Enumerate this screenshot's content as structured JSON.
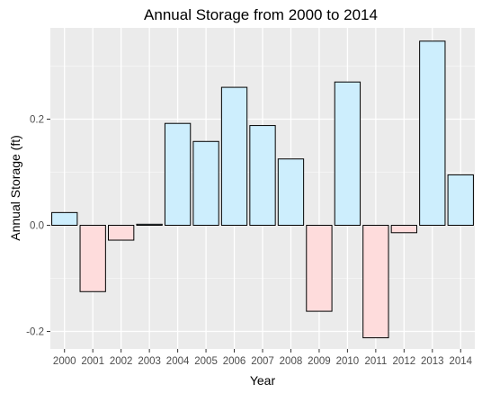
{
  "chart_data": {
    "type": "bar",
    "title": "Annual Storage from 2000 to 2014",
    "xlabel": "Year",
    "ylabel": "Annual Storage (ft)",
    "categories": [
      "2000",
      "2001",
      "2002",
      "2003",
      "2004",
      "2005",
      "2006",
      "2007",
      "2008",
      "2009",
      "2010",
      "2011",
      "2012",
      "2013",
      "2014"
    ],
    "values": [
      0.024,
      -0.125,
      -0.028,
      0.002,
      0.192,
      0.158,
      0.26,
      0.188,
      0.125,
      -0.162,
      0.27,
      -0.212,
      -0.014,
      0.347,
      0.095
    ],
    "ylim": [
      -0.233,
      0.372
    ],
    "yticks": [
      -0.2,
      0.0,
      0.2
    ],
    "ytick_labels": [
      "-0.2",
      "0.0",
      "0.2"
    ],
    "grid": true,
    "colors": {
      "positive": "#cdeefd",
      "negative": "#fedcdc",
      "bar_outline": "#000000",
      "panel_background": "#ebebeb",
      "grid_major": "#ffffff",
      "tick_text": "#4d4d4d"
    }
  }
}
